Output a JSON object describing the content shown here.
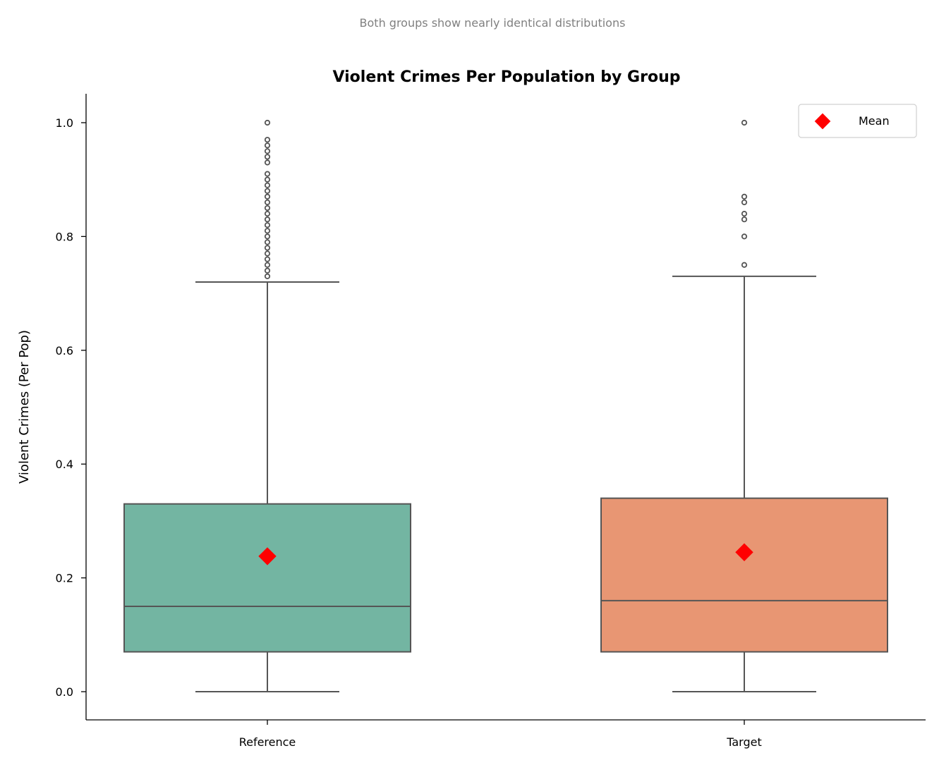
{
  "chart_data": {
    "type": "box",
    "subtitle": "Both groups show nearly identical distributions",
    "title": "Violent Crimes Per Population by Group",
    "xlabel": "",
    "ylabel": "Violent Crimes (Per Pop)",
    "ylim": [
      -0.05,
      1.05
    ],
    "yticks": [
      0.0,
      0.2,
      0.4,
      0.6,
      0.8,
      1.0
    ],
    "ytick_labels": [
      "0.0",
      "0.2",
      "0.4",
      "0.6",
      "0.8",
      "1.0"
    ],
    "categories": [
      "Reference",
      "Target"
    ],
    "groups": [
      {
        "name": "Reference",
        "color": "#73b5a2",
        "whisker_low": 0.0,
        "q1": 0.07,
        "median": 0.15,
        "q3": 0.33,
        "whisker_high": 0.72,
        "mean": 0.238,
        "outliers": [
          0.73,
          0.74,
          0.75,
          0.76,
          0.77,
          0.78,
          0.79,
          0.8,
          0.81,
          0.82,
          0.83,
          0.84,
          0.85,
          0.86,
          0.87,
          0.88,
          0.89,
          0.9,
          0.91,
          0.93,
          0.94,
          0.95,
          0.96,
          0.97,
          1.0
        ]
      },
      {
        "name": "Target",
        "color": "#e89673",
        "whisker_low": 0.0,
        "q1": 0.07,
        "median": 0.16,
        "q3": 0.34,
        "whisker_high": 0.73,
        "mean": 0.245,
        "outliers": [
          0.75,
          0.8,
          0.83,
          0.84,
          0.86,
          0.87,
          1.0
        ]
      }
    ],
    "legend": {
      "label": "Mean",
      "position": "top-right",
      "marker_color": "#ff0000"
    },
    "colors": {
      "line": "#555555",
      "mean_marker": "#ff0000"
    }
  }
}
